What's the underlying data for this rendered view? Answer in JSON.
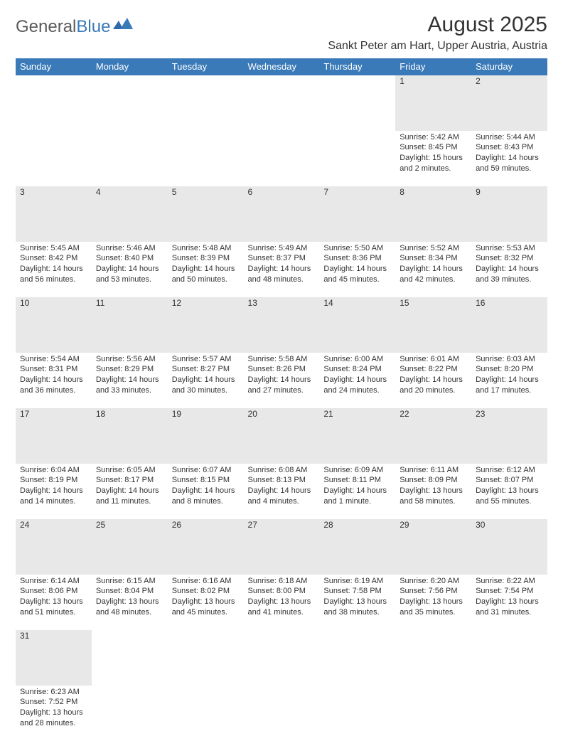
{
  "logo": {
    "part1": "General",
    "part2": "Blue"
  },
  "title": "August 2025",
  "location": "Sankt Peter am Hart, Upper Austria, Austria",
  "colors": {
    "header_bg": "#3a7ab8",
    "header_fg": "#ffffff",
    "daynum_bg": "#e8e8e8",
    "row_border": "#3a7ab8",
    "text": "#333333",
    "logo_gray": "#5a5a5a",
    "logo_blue": "#3a7ab8"
  },
  "day_headers": [
    "Sunday",
    "Monday",
    "Tuesday",
    "Wednesday",
    "Thursday",
    "Friday",
    "Saturday"
  ],
  "weeks": [
    [
      null,
      null,
      null,
      null,
      null,
      {
        "n": "1",
        "sunrise": "Sunrise: 5:42 AM",
        "sunset": "Sunset: 8:45 PM",
        "daylight": "Daylight: 15 hours and 2 minutes."
      },
      {
        "n": "2",
        "sunrise": "Sunrise: 5:44 AM",
        "sunset": "Sunset: 8:43 PM",
        "daylight": "Daylight: 14 hours and 59 minutes."
      }
    ],
    [
      {
        "n": "3",
        "sunrise": "Sunrise: 5:45 AM",
        "sunset": "Sunset: 8:42 PM",
        "daylight": "Daylight: 14 hours and 56 minutes."
      },
      {
        "n": "4",
        "sunrise": "Sunrise: 5:46 AM",
        "sunset": "Sunset: 8:40 PM",
        "daylight": "Daylight: 14 hours and 53 minutes."
      },
      {
        "n": "5",
        "sunrise": "Sunrise: 5:48 AM",
        "sunset": "Sunset: 8:39 PM",
        "daylight": "Daylight: 14 hours and 50 minutes."
      },
      {
        "n": "6",
        "sunrise": "Sunrise: 5:49 AM",
        "sunset": "Sunset: 8:37 PM",
        "daylight": "Daylight: 14 hours and 48 minutes."
      },
      {
        "n": "7",
        "sunrise": "Sunrise: 5:50 AM",
        "sunset": "Sunset: 8:36 PM",
        "daylight": "Daylight: 14 hours and 45 minutes."
      },
      {
        "n": "8",
        "sunrise": "Sunrise: 5:52 AM",
        "sunset": "Sunset: 8:34 PM",
        "daylight": "Daylight: 14 hours and 42 minutes."
      },
      {
        "n": "9",
        "sunrise": "Sunrise: 5:53 AM",
        "sunset": "Sunset: 8:32 PM",
        "daylight": "Daylight: 14 hours and 39 minutes."
      }
    ],
    [
      {
        "n": "10",
        "sunrise": "Sunrise: 5:54 AM",
        "sunset": "Sunset: 8:31 PM",
        "daylight": "Daylight: 14 hours and 36 minutes."
      },
      {
        "n": "11",
        "sunrise": "Sunrise: 5:56 AM",
        "sunset": "Sunset: 8:29 PM",
        "daylight": "Daylight: 14 hours and 33 minutes."
      },
      {
        "n": "12",
        "sunrise": "Sunrise: 5:57 AM",
        "sunset": "Sunset: 8:27 PM",
        "daylight": "Daylight: 14 hours and 30 minutes."
      },
      {
        "n": "13",
        "sunrise": "Sunrise: 5:58 AM",
        "sunset": "Sunset: 8:26 PM",
        "daylight": "Daylight: 14 hours and 27 minutes."
      },
      {
        "n": "14",
        "sunrise": "Sunrise: 6:00 AM",
        "sunset": "Sunset: 8:24 PM",
        "daylight": "Daylight: 14 hours and 24 minutes."
      },
      {
        "n": "15",
        "sunrise": "Sunrise: 6:01 AM",
        "sunset": "Sunset: 8:22 PM",
        "daylight": "Daylight: 14 hours and 20 minutes."
      },
      {
        "n": "16",
        "sunrise": "Sunrise: 6:03 AM",
        "sunset": "Sunset: 8:20 PM",
        "daylight": "Daylight: 14 hours and 17 minutes."
      }
    ],
    [
      {
        "n": "17",
        "sunrise": "Sunrise: 6:04 AM",
        "sunset": "Sunset: 8:19 PM",
        "daylight": "Daylight: 14 hours and 14 minutes."
      },
      {
        "n": "18",
        "sunrise": "Sunrise: 6:05 AM",
        "sunset": "Sunset: 8:17 PM",
        "daylight": "Daylight: 14 hours and 11 minutes."
      },
      {
        "n": "19",
        "sunrise": "Sunrise: 6:07 AM",
        "sunset": "Sunset: 8:15 PM",
        "daylight": "Daylight: 14 hours and 8 minutes."
      },
      {
        "n": "20",
        "sunrise": "Sunrise: 6:08 AM",
        "sunset": "Sunset: 8:13 PM",
        "daylight": "Daylight: 14 hours and 4 minutes."
      },
      {
        "n": "21",
        "sunrise": "Sunrise: 6:09 AM",
        "sunset": "Sunset: 8:11 PM",
        "daylight": "Daylight: 14 hours and 1 minute."
      },
      {
        "n": "22",
        "sunrise": "Sunrise: 6:11 AM",
        "sunset": "Sunset: 8:09 PM",
        "daylight": "Daylight: 13 hours and 58 minutes."
      },
      {
        "n": "23",
        "sunrise": "Sunrise: 6:12 AM",
        "sunset": "Sunset: 8:07 PM",
        "daylight": "Daylight: 13 hours and 55 minutes."
      }
    ],
    [
      {
        "n": "24",
        "sunrise": "Sunrise: 6:14 AM",
        "sunset": "Sunset: 8:06 PM",
        "daylight": "Daylight: 13 hours and 51 minutes."
      },
      {
        "n": "25",
        "sunrise": "Sunrise: 6:15 AM",
        "sunset": "Sunset: 8:04 PM",
        "daylight": "Daylight: 13 hours and 48 minutes."
      },
      {
        "n": "26",
        "sunrise": "Sunrise: 6:16 AM",
        "sunset": "Sunset: 8:02 PM",
        "daylight": "Daylight: 13 hours and 45 minutes."
      },
      {
        "n": "27",
        "sunrise": "Sunrise: 6:18 AM",
        "sunset": "Sunset: 8:00 PM",
        "daylight": "Daylight: 13 hours and 41 minutes."
      },
      {
        "n": "28",
        "sunrise": "Sunrise: 6:19 AM",
        "sunset": "Sunset: 7:58 PM",
        "daylight": "Daylight: 13 hours and 38 minutes."
      },
      {
        "n": "29",
        "sunrise": "Sunrise: 6:20 AM",
        "sunset": "Sunset: 7:56 PM",
        "daylight": "Daylight: 13 hours and 35 minutes."
      },
      {
        "n": "30",
        "sunrise": "Sunrise: 6:22 AM",
        "sunset": "Sunset: 7:54 PM",
        "daylight": "Daylight: 13 hours and 31 minutes."
      }
    ],
    [
      {
        "n": "31",
        "sunrise": "Sunrise: 6:23 AM",
        "sunset": "Sunset: 7:52 PM",
        "daylight": "Daylight: 13 hours and 28 minutes."
      },
      null,
      null,
      null,
      null,
      null,
      null
    ]
  ]
}
